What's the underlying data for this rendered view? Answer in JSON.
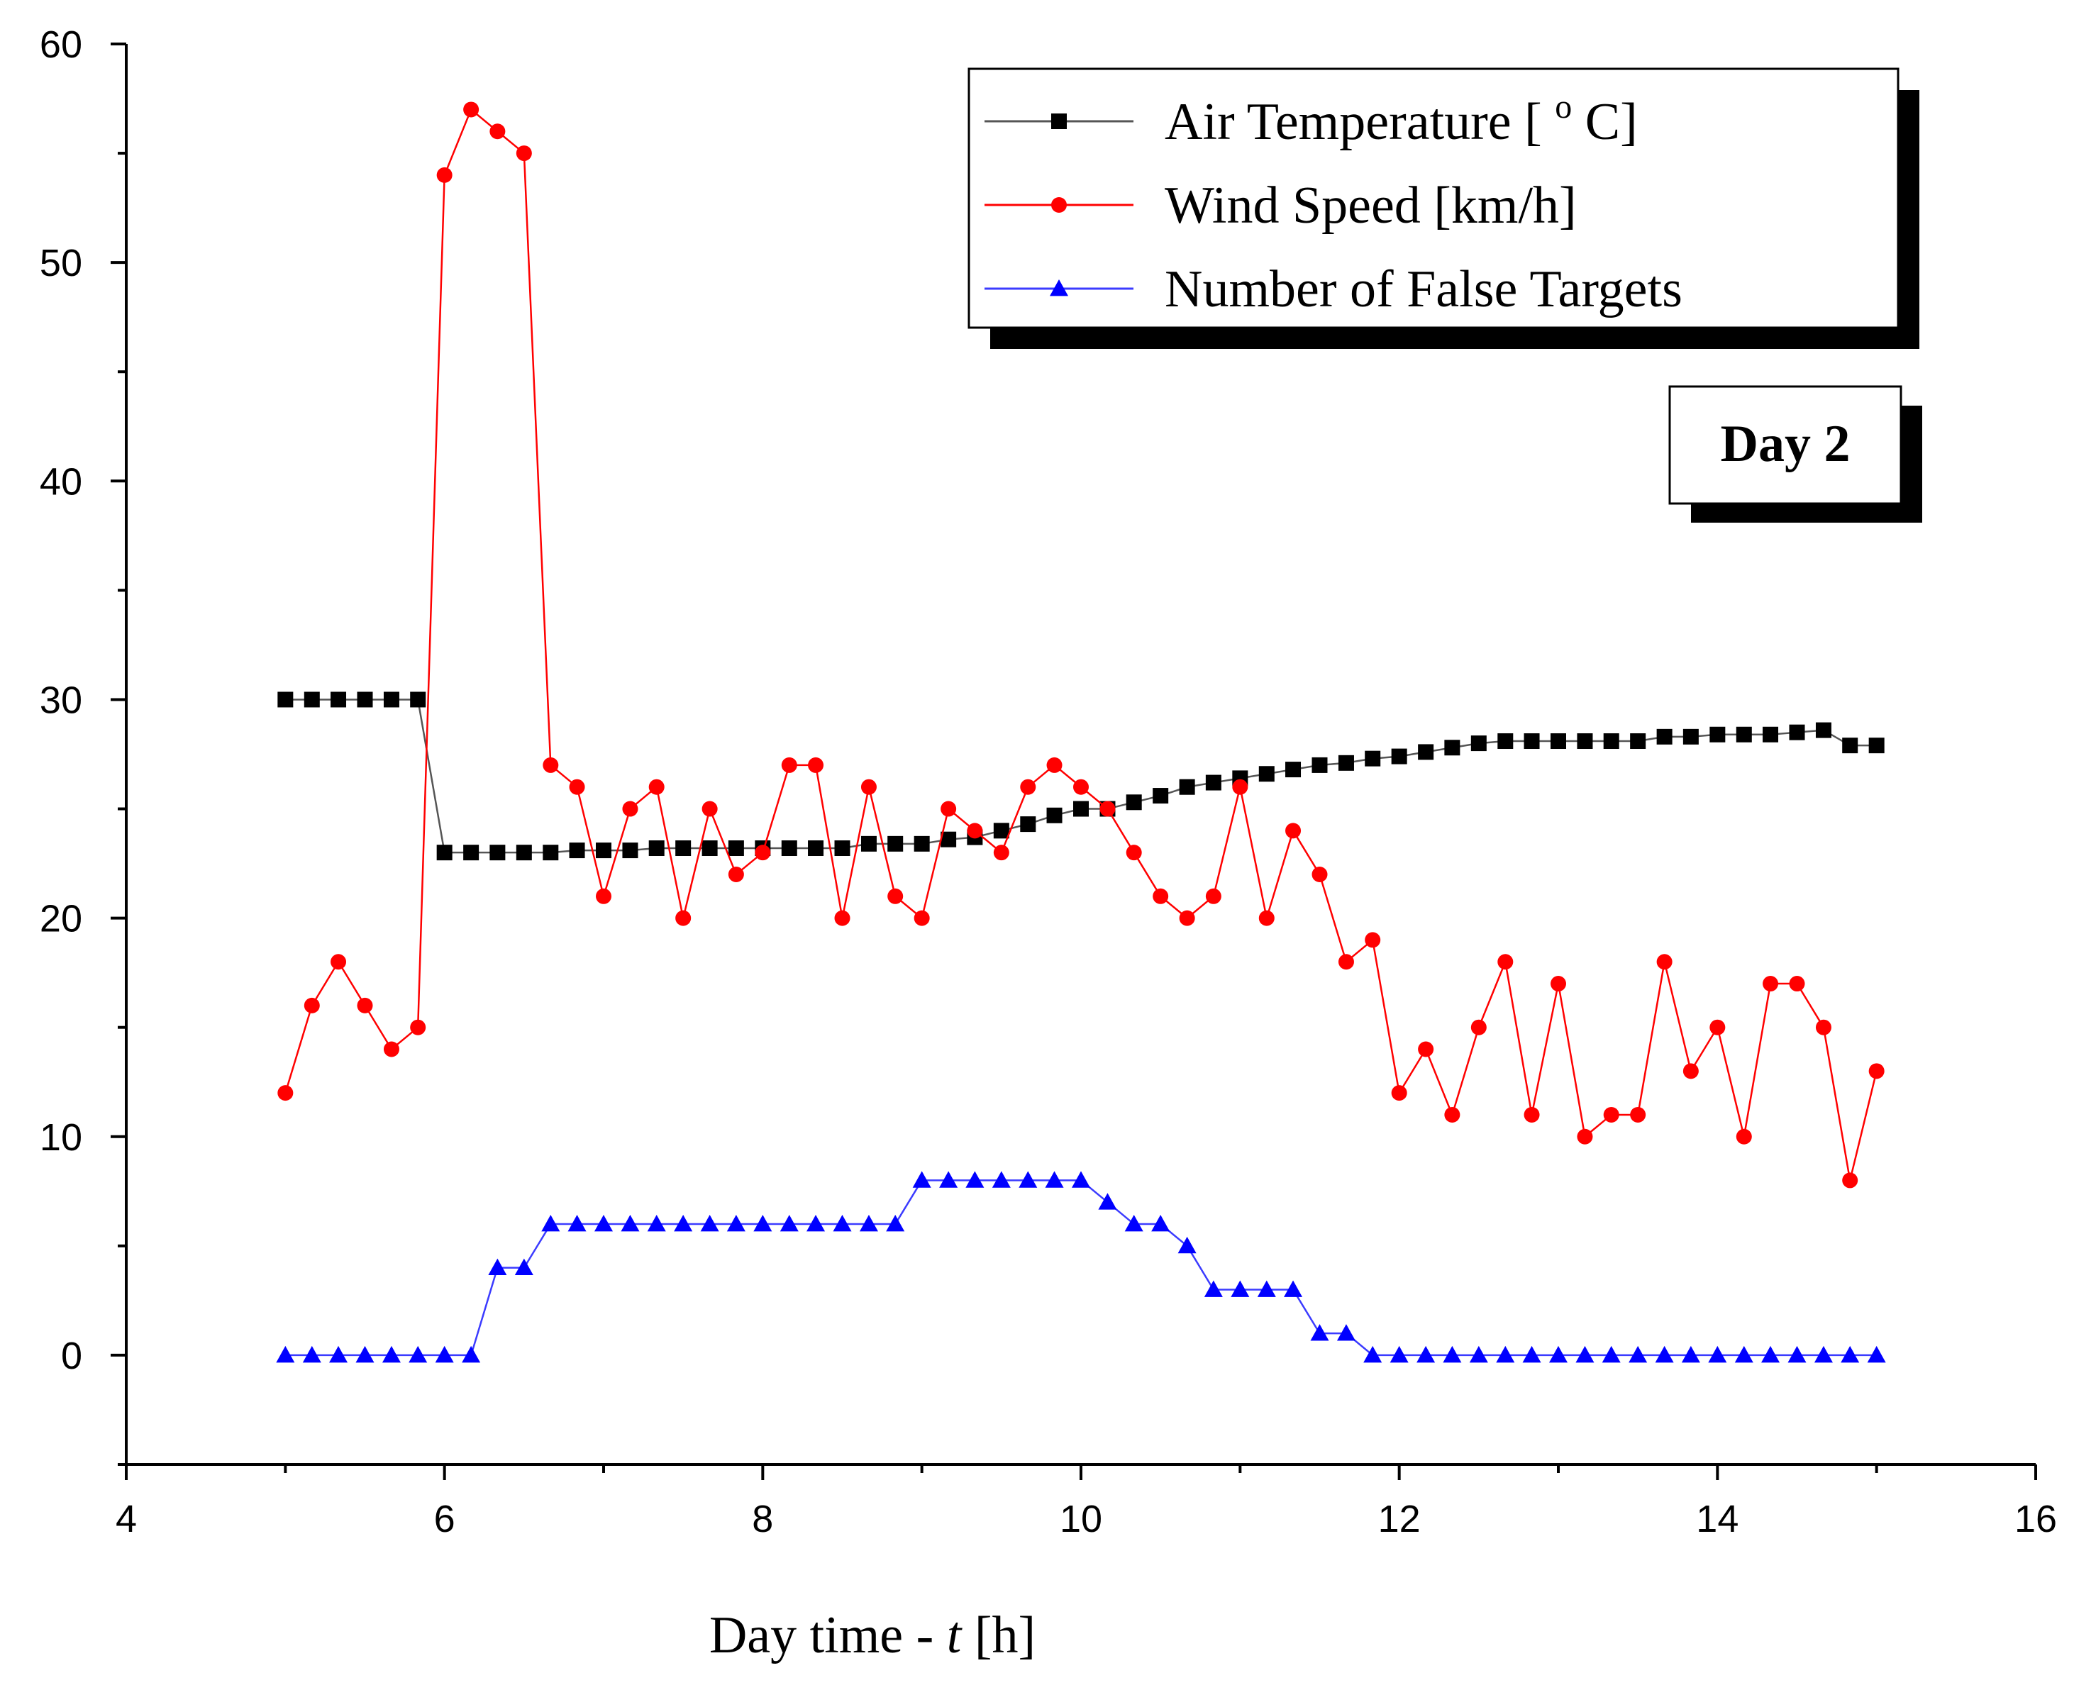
{
  "chart_data": {
    "type": "line",
    "title": "",
    "xlabel_prefix": "Day time - ",
    "xlabel_var": "t",
    "xlabel_unit": " [h]",
    "ylabel": "",
    "xlim": [
      4,
      16
    ],
    "ylim": [
      -5,
      60
    ],
    "xticks": [
      4,
      6,
      8,
      10,
      12,
      14,
      16
    ],
    "yticks": [
      0,
      10,
      20,
      30,
      40,
      50,
      60
    ],
    "annotation": "Day 2",
    "legend_position": "top-right",
    "series": [
      {
        "name": "Air Temperature [ ° C]",
        "label_main": "Air Temperature [ ",
        "label_sup": "o",
        "label_end": " C]",
        "color": "#000000",
        "line_color": "#555555",
        "marker": "square",
        "x": [
          5,
          5.167,
          5.333,
          5.5,
          5.667,
          5.833,
          6,
          6.167,
          6.333,
          6.5,
          6.667,
          6.833,
          7,
          7.167,
          7.333,
          7.5,
          7.667,
          7.833,
          8,
          8.167,
          8.333,
          8.5,
          8.667,
          8.833,
          9,
          9.167,
          9.333,
          9.5,
          9.667,
          9.833,
          10,
          10.167,
          10.333,
          10.5,
          10.667,
          10.833,
          11,
          11.167,
          11.333,
          11.5,
          11.667,
          11.833,
          12,
          12.167,
          12.333,
          12.5,
          12.667,
          12.833,
          13,
          13.167,
          13.333,
          13.5,
          13.667,
          13.833,
          14,
          14.167,
          14.333,
          14.5,
          14.667,
          14.833,
          15
        ],
        "y": [
          30,
          30,
          30,
          30,
          30,
          30,
          23,
          23,
          23,
          23,
          23,
          23.1,
          23.1,
          23.1,
          23.2,
          23.2,
          23.2,
          23.2,
          23.2,
          23.2,
          23.2,
          23.2,
          23.4,
          23.4,
          23.4,
          23.6,
          23.7,
          24,
          24.3,
          24.7,
          25,
          25,
          25.3,
          25.6,
          26,
          26.2,
          26.4,
          26.6,
          26.8,
          27,
          27.1,
          27.3,
          27.4,
          27.6,
          27.8,
          28,
          28.1,
          28.1,
          28.1,
          28.1,
          28.1,
          28.1,
          28.3,
          28.3,
          28.4,
          28.4,
          28.4,
          28.5,
          28.6,
          27.9,
          27.9
        ]
      },
      {
        "name": "Wind Speed [km/h]",
        "label_main": "Wind Speed [km/h]",
        "label_sup": "",
        "label_end": "",
        "color": "#ff0000",
        "line_color": "#ff0000",
        "marker": "circle",
        "x": [
          5,
          5.167,
          5.333,
          5.5,
          5.667,
          5.833,
          6,
          6.167,
          6.333,
          6.5,
          6.667,
          6.833,
          7,
          7.167,
          7.333,
          7.5,
          7.667,
          7.833,
          8,
          8.167,
          8.333,
          8.5,
          8.667,
          8.833,
          9,
          9.167,
          9.333,
          9.5,
          9.667,
          9.833,
          10,
          10.167,
          10.333,
          10.5,
          10.667,
          10.833,
          11,
          11.167,
          11.333,
          11.5,
          11.667,
          11.833,
          12,
          12.167,
          12.333,
          12.5,
          12.667,
          12.833,
          13,
          13.167,
          13.333,
          13.5,
          13.667,
          13.833,
          14,
          14.167,
          14.333,
          14.5,
          14.667,
          14.833,
          15
        ],
        "y": [
          12,
          16,
          18,
          16,
          14,
          15,
          54,
          57,
          56,
          55,
          27,
          26,
          21,
          25,
          26,
          20,
          25,
          22,
          23,
          27,
          27,
          20,
          26,
          21,
          20,
          25,
          24,
          23,
          26,
          27,
          26,
          25,
          23,
          21,
          20,
          21,
          26,
          20,
          24,
          22,
          18,
          19,
          12,
          14,
          11,
          15,
          18,
          11,
          17,
          10,
          11,
          11,
          18,
          13,
          15,
          10,
          17,
          17,
          15,
          8,
          13
        ]
      },
      {
        "name": "Number of False Targets",
        "label_main": "Number of False Targets",
        "label_sup": "",
        "label_end": "",
        "color": "#0000ff",
        "line_color": "#3b3bff",
        "marker": "triangle",
        "x": [
          5,
          5.167,
          5.333,
          5.5,
          5.667,
          5.833,
          6,
          6.167,
          6.333,
          6.5,
          6.667,
          6.833,
          7,
          7.167,
          7.333,
          7.5,
          7.667,
          7.833,
          8,
          8.167,
          8.333,
          8.5,
          8.667,
          8.833,
          9,
          9.167,
          9.333,
          9.5,
          9.667,
          9.833,
          10,
          10.167,
          10.333,
          10.5,
          10.667,
          10.833,
          11,
          11.167,
          11.333,
          11.5,
          11.667,
          11.833,
          12,
          12.167,
          12.333,
          12.5,
          12.667,
          12.833,
          13,
          13.167,
          13.333,
          13.5,
          13.667,
          13.833,
          14,
          14.167,
          14.333,
          14.5,
          14.667,
          14.833,
          15
        ],
        "y": [
          0,
          0,
          0,
          0,
          0,
          0,
          0,
          0,
          4,
          4,
          6,
          6,
          6,
          6,
          6,
          6,
          6,
          6,
          6,
          6,
          6,
          6,
          6,
          6,
          8,
          8,
          8,
          8,
          8,
          8,
          8,
          7,
          6,
          6,
          5,
          3,
          3,
          3,
          3,
          1,
          1,
          0,
          0,
          0,
          0,
          0,
          0,
          0,
          0,
          0,
          0,
          0,
          0,
          0,
          0,
          0,
          0,
          0,
          0,
          0,
          0
        ]
      }
    ]
  }
}
